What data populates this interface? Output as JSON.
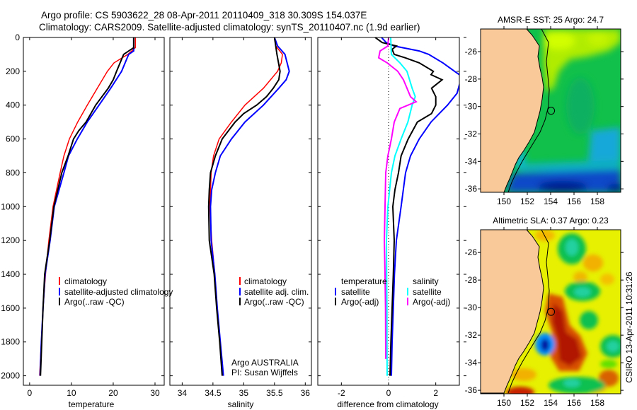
{
  "header": {
    "line1": "Argo profile: CS 5903622_28 08-Apr-2011 20110409_318 30.309S 154.037E",
    "line2": "Climatology: CARS2009. Satellite-adjusted climatology: synTS_20110407.nc (1.9d earlier)"
  },
  "credit": {
    "program": "Argo AUSTRALIA",
    "pi": "PI: Susan Wijffels",
    "stamp": "CSIRO 13-Apr-2011 10:31:26"
  },
  "colors": {
    "red": "#ff0000",
    "blue": "#0000ff",
    "black": "#000000",
    "cyan": "#00ffff",
    "magenta": "#ff00ff",
    "land": "#f9c99a"
  },
  "chart_data": [
    {
      "type": "line",
      "id": "temperature",
      "xlabel": "temperature",
      "ylabel": "",
      "xlim": [
        -1.5,
        32.2
      ],
      "ylim": [
        2056,
        0
      ],
      "xticks": [
        0,
        10,
        20,
        30
      ],
      "yticks": [
        0,
        200,
        400,
        600,
        800,
        1000,
        1200,
        1400,
        1600,
        1800,
        2000
      ],
      "legend": [
        "climatology",
        "satellite-adjusted climatology",
        "Argo(..raw -QC)"
      ],
      "series": [
        {
          "name": "climatology",
          "color": "red",
          "depth": [
            0,
            60,
            100,
            150,
            200,
            300,
            400,
            500,
            600,
            700,
            800,
            1000,
            1200,
            1400,
            1600,
            1800,
            2000
          ],
          "values": [
            25.3,
            25.3,
            23.5,
            20.2,
            18.6,
            16.2,
            13.8,
            11.5,
            9.5,
            8.2,
            7.3,
            5.6,
            4.6,
            3.8,
            3.2,
            2.8,
            2.4
          ]
        },
        {
          "name": "satellite-adjusted climatology",
          "color": "blue",
          "depth": [
            0,
            80,
            100,
            200,
            300,
            400,
            500,
            600,
            700,
            800,
            1000,
            1200,
            1400,
            1600,
            1800,
            2000
          ],
          "values": [
            24.9,
            24.9,
            23.7,
            22.0,
            19.4,
            16.6,
            13.8,
            11.4,
            9.3,
            8.2,
            5.9,
            4.9,
            3.7,
            3.2,
            2.8,
            2.5
          ]
        },
        {
          "name": "Argo(..raw -QC)",
          "color": "black",
          "depth": [
            0,
            60,
            100,
            200,
            250,
            300,
            400,
            500,
            550,
            600,
            700,
            800,
            1000,
            1200,
            1400,
            1600,
            1800,
            2000
          ],
          "values": [
            24.9,
            24.9,
            22.5,
            20.8,
            20.0,
            18.8,
            15.8,
            13.5,
            11.8,
            10.5,
            9.2,
            7.7,
            5.8,
            4.8,
            3.6,
            3.2,
            2.9,
            2.6
          ]
        }
      ]
    },
    {
      "type": "line",
      "id": "salinity",
      "xlabel": "salinity",
      "xlim": [
        33.8,
        36.1
      ],
      "ylim": [
        2056,
        0
      ],
      "xticks": [
        34,
        34.5,
        35,
        35.5,
        36
      ],
      "legend": [
        "climatology",
        "satellite adj. clim.",
        "Argo(..raw -QC)"
      ],
      "series": [
        {
          "name": "climatology",
          "color": "red",
          "depth": [
            0,
            50,
            100,
            150,
            200,
            300,
            400,
            500,
            600,
            700,
            800,
            1000,
            1200,
            1400,
            1600,
            1800,
            2000
          ],
          "values": [
            35.5,
            35.52,
            35.63,
            35.61,
            35.55,
            35.32,
            35.02,
            34.8,
            34.6,
            34.51,
            34.47,
            34.45,
            34.48,
            34.53,
            34.57,
            34.62,
            34.66
          ]
        },
        {
          "name": "satellite adj. clim.",
          "color": "blue",
          "depth": [
            0,
            50,
            100,
            200,
            250,
            300,
            400,
            500,
            600,
            700,
            800,
            900,
            1000,
            1200,
            1400,
            1600,
            1800,
            2000
          ],
          "values": [
            35.5,
            35.55,
            35.67,
            35.74,
            35.69,
            35.57,
            35.32,
            35.02,
            34.8,
            34.62,
            34.54,
            34.48,
            34.46,
            34.47,
            34.53,
            34.57,
            34.62,
            34.67
          ]
        },
        {
          "name": "Argo(..raw -QC)",
          "color": "black",
          "depth": [
            0,
            100,
            200,
            250,
            300,
            350,
            400,
            450,
            500,
            600,
            700,
            800,
            900,
            1000,
            1200,
            1400,
            1600,
            1800,
            2000
          ],
          "values": [
            35.5,
            35.54,
            35.59,
            35.57,
            35.48,
            35.37,
            35.21,
            35.0,
            34.86,
            34.65,
            34.54,
            34.46,
            34.44,
            34.43,
            34.44,
            34.52,
            34.56,
            34.61,
            34.65
          ]
        }
      ]
    },
    {
      "type": "line",
      "id": "difference",
      "xlabel": "difference from climatology",
      "xlim": [
        -3,
        3
      ],
      "ylim": [
        2056,
        0
      ],
      "xticks": [
        -2,
        0,
        2
      ],
      "legend_headers": [
        "temperature",
        "salinity"
      ],
      "legend": [
        "satellite",
        "Argo(-adj)",
        "satellite",
        "Argo(-adj)"
      ],
      "series": [
        {
          "name": "temperature satellite",
          "color": "blue",
          "depth": [
            0,
            30,
            50,
            80,
            100,
            150,
            200,
            230,
            330,
            400,
            500,
            600,
            700,
            800,
            1000,
            1200,
            1400,
            1600,
            1800,
            2000
          ],
          "values": [
            -0.3,
            -0.1,
            0.23,
            1.3,
            1.7,
            2.3,
            2.8,
            3.1,
            2.9,
            2.5,
            1.8,
            1.3,
            0.93,
            0.72,
            0.53,
            0.33,
            0.25,
            0.2,
            0.15,
            0.12
          ]
        },
        {
          "name": "temperature Argo(-adj)",
          "color": "black",
          "depth": [
            0,
            30,
            50,
            70,
            100,
            120,
            150,
            200,
            220,
            250,
            300,
            350,
            400,
            450,
            500,
            600,
            700,
            800,
            900,
            1000,
            1200,
            1400,
            1600,
            1800,
            2000
          ],
          "values": [
            -0.57,
            -0.27,
            0.33,
            0.15,
            0.24,
            0.7,
            1.3,
            1.9,
            1.8,
            2.27,
            1.82,
            2.0,
            2.0,
            1.82,
            1.22,
            0.83,
            0.53,
            0.42,
            0.27,
            0.18,
            0.24,
            0.2,
            0.15,
            0.1,
            0.06
          ]
        },
        {
          "name": "salinity satellite",
          "color": "cyan",
          "depth": [
            0,
            100,
            150,
            200,
            300,
            350,
            400,
            500,
            600,
            700,
            800,
            1000,
            1200,
            1400,
            1600,
            1800,
            2000
          ],
          "values": [
            0.09,
            0.12,
            0.48,
            0.78,
            1.0,
            1.13,
            1.0,
            0.82,
            0.53,
            0.27,
            0.12,
            -0.03,
            -0.09,
            -0.08,
            -0.07,
            -0.07,
            -0.06
          ]
        },
        {
          "name": "salinity Argo(-adj)",
          "color": "magenta",
          "depth": [
            0,
            50,
            80,
            120,
            150,
            200,
            250,
            300,
            350,
            380,
            420,
            500,
            600,
            700,
            800,
            1000,
            1200,
            1400,
            1600,
            1900
          ],
          "values": [
            0,
            -0.03,
            -0.36,
            -0.42,
            -0.06,
            0.39,
            0.63,
            0.78,
            0.93,
            1.17,
            0.48,
            0.24,
            0.12,
            -0.03,
            -0.12,
            -0.15,
            -0.18,
            -0.15,
            -0.13,
            -0.12
          ]
        }
      ]
    },
    {
      "type": "heatmap",
      "id": "sst-map",
      "title": "AMSR-E SST: 25 Argo: 24.7",
      "xlim": [
        148,
        160
      ],
      "ylim": [
        -36.25,
        -24.35
      ],
      "xticks": [
        150,
        152,
        154,
        156,
        158
      ],
      "yticks": [
        -26,
        -28,
        -30,
        -32,
        -34,
        -36
      ],
      "argo_position": {
        "lon": 154.037,
        "lat": -30.309
      }
    },
    {
      "type": "heatmap",
      "id": "sla-map",
      "title": "Altimetric SLA: 0.37 Argo: 0.23",
      "xlim": [
        148,
        160
      ],
      "ylim": [
        -36.25,
        -24.35
      ],
      "xticks": [
        150,
        152,
        154,
        156,
        158
      ],
      "yticks": [
        -26,
        -28,
        -30,
        -32,
        -34,
        -36
      ],
      "argo_position": {
        "lon": 154.037,
        "lat": -30.309
      }
    }
  ]
}
